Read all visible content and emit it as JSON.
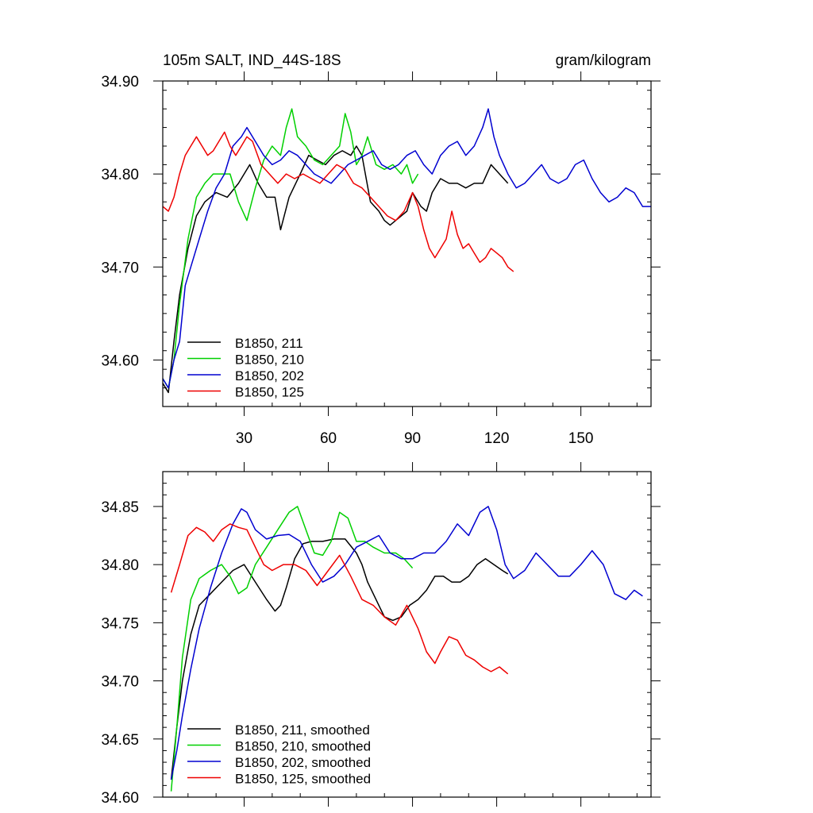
{
  "chart_data": [
    {
      "type": "line",
      "title": "105m SALT, IND_44S-18S",
      "units_label": "gram/kilogram",
      "xlim": [
        1,
        175
      ],
      "ylim": [
        34.55,
        34.9
      ],
      "xticks": [
        30,
        60,
        90,
        120,
        150
      ],
      "yticks": [
        34.6,
        34.7,
        34.8,
        34.9
      ],
      "ytick_labels": [
        "34.60",
        "34.70",
        "34.80",
        "34.90"
      ],
      "legend_position": "bottom-left",
      "series": [
        {
          "name": "B1850, 211",
          "color": "#000000",
          "x": [
            1,
            3,
            5,
            7,
            10,
            13,
            16,
            20,
            24,
            28,
            32,
            35,
            38,
            41,
            43,
            46,
            50,
            53,
            56,
            59,
            62,
            65,
            68,
            70,
            72,
            75,
            78,
            80,
            82,
            84,
            86,
            88,
            90,
            93,
            95,
            97,
            100,
            103,
            106,
            109,
            112,
            115,
            118,
            121,
            124
          ],
          "y": [
            34.575,
            34.565,
            34.62,
            34.67,
            34.72,
            34.755,
            34.77,
            34.78,
            34.775,
            34.79,
            34.81,
            34.79,
            34.775,
            34.775,
            34.74,
            34.775,
            34.8,
            34.82,
            34.815,
            34.81,
            34.82,
            34.825,
            34.82,
            34.83,
            34.82,
            34.77,
            34.76,
            34.75,
            34.745,
            34.75,
            34.755,
            34.76,
            34.78,
            34.765,
            34.76,
            34.78,
            34.795,
            34.79,
            34.79,
            34.785,
            34.79,
            34.79,
            34.81,
            34.8,
            34.79
          ]
        },
        {
          "name": "B1850, 210",
          "color": "#00d000",
          "x": [
            1,
            3,
            5,
            7,
            10,
            13,
            16,
            19,
            22,
            25,
            28,
            31,
            34,
            37,
            40,
            43,
            45,
            47,
            49,
            52,
            55,
            58,
            61,
            64,
            66,
            68,
            70,
            72,
            74,
            77,
            80,
            83,
            86,
            88,
            90,
            92
          ],
          "y": [
            34.58,
            34.57,
            34.6,
            34.66,
            34.73,
            34.775,
            34.79,
            34.8,
            34.8,
            34.8,
            34.77,
            34.75,
            34.785,
            34.815,
            34.83,
            34.82,
            34.85,
            34.87,
            34.84,
            34.83,
            34.815,
            34.81,
            34.82,
            34.83,
            34.865,
            34.845,
            34.81,
            34.82,
            34.84,
            34.81,
            34.805,
            34.81,
            34.8,
            34.81,
            34.79,
            34.8
          ]
        },
        {
          "name": "B1850, 202",
          "color": "#0000d0",
          "x": [
            1,
            3,
            5,
            7,
            9,
            11,
            14,
            17,
            20,
            23,
            26,
            29,
            31,
            34,
            37,
            40,
            43,
            46,
            49,
            52,
            55,
            58,
            61,
            64,
            67,
            70,
            73,
            76,
            79,
            82,
            85,
            88,
            91,
            94,
            97,
            100,
            103,
            106,
            109,
            112,
            115,
            117,
            119,
            121,
            124,
            127,
            130,
            133,
            136,
            139,
            142,
            145,
            148,
            151,
            154,
            157,
            160,
            163,
            166,
            169,
            172,
            175
          ],
          "y": [
            34.58,
            34.57,
            34.6,
            34.62,
            34.68,
            34.7,
            34.73,
            34.76,
            34.785,
            34.8,
            34.83,
            34.84,
            34.85,
            34.835,
            34.82,
            34.81,
            34.815,
            34.825,
            34.82,
            34.81,
            34.8,
            34.795,
            34.79,
            34.8,
            34.81,
            34.815,
            34.82,
            34.825,
            34.81,
            34.805,
            34.81,
            34.82,
            34.825,
            34.81,
            34.8,
            34.82,
            34.83,
            34.835,
            34.82,
            34.83,
            34.85,
            34.87,
            34.84,
            34.82,
            34.8,
            34.785,
            34.79,
            34.8,
            34.81,
            34.795,
            34.79,
            34.795,
            34.81,
            34.815,
            34.795,
            34.78,
            34.77,
            34.775,
            34.785,
            34.78,
            34.765,
            34.765
          ]
        },
        {
          "name": "B1850, 125",
          "color": "#ee0000",
          "x": [
            1,
            3,
            5,
            7,
            9,
            11,
            13,
            15,
            17,
            19,
            21,
            23,
            25,
            27,
            29,
            31,
            33,
            36,
            39,
            42,
            45,
            48,
            51,
            54,
            57,
            60,
            63,
            66,
            69,
            72,
            75,
            78,
            81,
            84,
            87,
            90,
            92,
            94,
            96,
            98,
            100,
            102,
            104,
            106,
            108,
            110,
            112,
            114,
            116,
            118,
            120,
            122,
            124,
            126
          ],
          "y": [
            34.765,
            34.76,
            34.775,
            34.8,
            34.82,
            34.83,
            34.84,
            34.83,
            34.82,
            34.825,
            34.835,
            34.845,
            34.83,
            34.82,
            34.83,
            34.84,
            34.835,
            34.81,
            34.8,
            34.79,
            34.8,
            34.795,
            34.8,
            34.795,
            34.79,
            34.8,
            34.81,
            34.805,
            34.79,
            34.785,
            34.775,
            34.765,
            34.755,
            34.75,
            34.76,
            34.78,
            34.765,
            34.74,
            34.72,
            34.71,
            34.72,
            34.73,
            34.76,
            34.735,
            34.72,
            34.725,
            34.715,
            34.705,
            34.71,
            34.72,
            34.715,
            34.71,
            34.7,
            34.695
          ]
        }
      ]
    },
    {
      "type": "line",
      "xlim": [
        1,
        175
      ],
      "ylim": [
        34.6,
        34.88
      ],
      "xticks": [
        30,
        60,
        90,
        120,
        150
      ],
      "yticks": [
        34.6,
        34.65,
        34.7,
        34.75,
        34.8,
        34.85
      ],
      "ytick_labels": [
        "34.60",
        "34.65",
        "34.70",
        "34.75",
        "34.80",
        "34.85"
      ],
      "legend_position": "bottom-left",
      "series": [
        {
          "name": "B1850, 211, smoothed",
          "color": "#000000",
          "x": [
            4,
            6,
            8,
            11,
            14,
            18,
            22,
            26,
            30,
            34,
            38,
            41,
            43,
            45,
            48,
            51,
            54,
            58,
            62,
            66,
            70,
            72,
            74,
            77,
            80,
            83,
            86,
            89,
            92,
            95,
            98,
            101,
            104,
            107,
            110,
            113,
            116,
            119,
            122,
            124
          ],
          "y": [
            34.615,
            34.66,
            34.7,
            34.74,
            34.765,
            34.775,
            34.785,
            34.795,
            34.8,
            34.785,
            34.77,
            34.76,
            34.765,
            34.78,
            34.805,
            34.818,
            34.82,
            34.82,
            34.822,
            34.822,
            34.81,
            34.8,
            34.785,
            34.77,
            34.755,
            34.752,
            34.755,
            34.765,
            34.77,
            34.778,
            34.79,
            34.79,
            34.785,
            34.785,
            34.79,
            34.8,
            34.805,
            34.8,
            34.795,
            34.792
          ]
        },
        {
          "name": "B1850, 210, smoothed",
          "color": "#00d000",
          "x": [
            4,
            6,
            8,
            11,
            14,
            18,
            22,
            25,
            28,
            31,
            34,
            38,
            42,
            46,
            49,
            52,
            55,
            58,
            61,
            64,
            67,
            70,
            73,
            76,
            80,
            84,
            87,
            90
          ],
          "y": [
            34.605,
            34.66,
            34.72,
            34.77,
            34.788,
            34.795,
            34.8,
            34.79,
            34.775,
            34.78,
            34.8,
            34.815,
            34.83,
            34.845,
            34.85,
            34.83,
            34.81,
            34.808,
            34.82,
            34.845,
            34.84,
            34.82,
            34.82,
            34.815,
            34.81,
            34.81,
            34.805,
            34.797
          ]
        },
        {
          "name": "B1850, 202, smoothed",
          "color": "#0000d0",
          "x": [
            4,
            6,
            8,
            11,
            14,
            18,
            22,
            26,
            29,
            31,
            34,
            38,
            42,
            46,
            50,
            54,
            58,
            62,
            66,
            70,
            74,
            78,
            82,
            86,
            90,
            94,
            98,
            102,
            106,
            110,
            114,
            117,
            120,
            123,
            126,
            130,
            134,
            138,
            142,
            146,
            150,
            154,
            158,
            162,
            166,
            169,
            172
          ],
          "y": [
            34.615,
            34.64,
            34.67,
            34.71,
            34.745,
            34.78,
            34.81,
            34.835,
            34.848,
            34.845,
            34.83,
            34.822,
            34.825,
            34.826,
            34.82,
            34.8,
            34.785,
            34.79,
            34.8,
            34.815,
            34.82,
            34.825,
            34.81,
            34.805,
            34.805,
            34.81,
            34.81,
            34.82,
            34.835,
            34.825,
            34.845,
            34.85,
            34.83,
            34.8,
            34.788,
            34.795,
            34.81,
            34.8,
            34.79,
            34.79,
            34.8,
            34.812,
            34.8,
            34.775,
            34.77,
            34.778,
            34.773
          ]
        },
        {
          "name": "B1850, 125, smoothed",
          "color": "#ee0000",
          "x": [
            4,
            7,
            10,
            13,
            16,
            19,
            22,
            25,
            28,
            31,
            34,
            37,
            40,
            44,
            48,
            52,
            56,
            60,
            64,
            68,
            72,
            76,
            80,
            84,
            88,
            92,
            95,
            98,
            100,
            103,
            106,
            109,
            112,
            115,
            118,
            121,
            124
          ],
          "y": [
            34.776,
            34.8,
            34.825,
            34.832,
            34.828,
            34.82,
            34.83,
            34.835,
            34.832,
            34.83,
            34.815,
            34.8,
            34.795,
            34.8,
            34.8,
            34.795,
            34.782,
            34.795,
            34.808,
            34.79,
            34.77,
            34.765,
            34.755,
            34.748,
            34.765,
            34.745,
            34.725,
            34.715,
            34.725,
            34.738,
            34.735,
            34.722,
            34.718,
            34.712,
            34.708,
            34.712,
            34.706
          ]
        }
      ]
    }
  ]
}
